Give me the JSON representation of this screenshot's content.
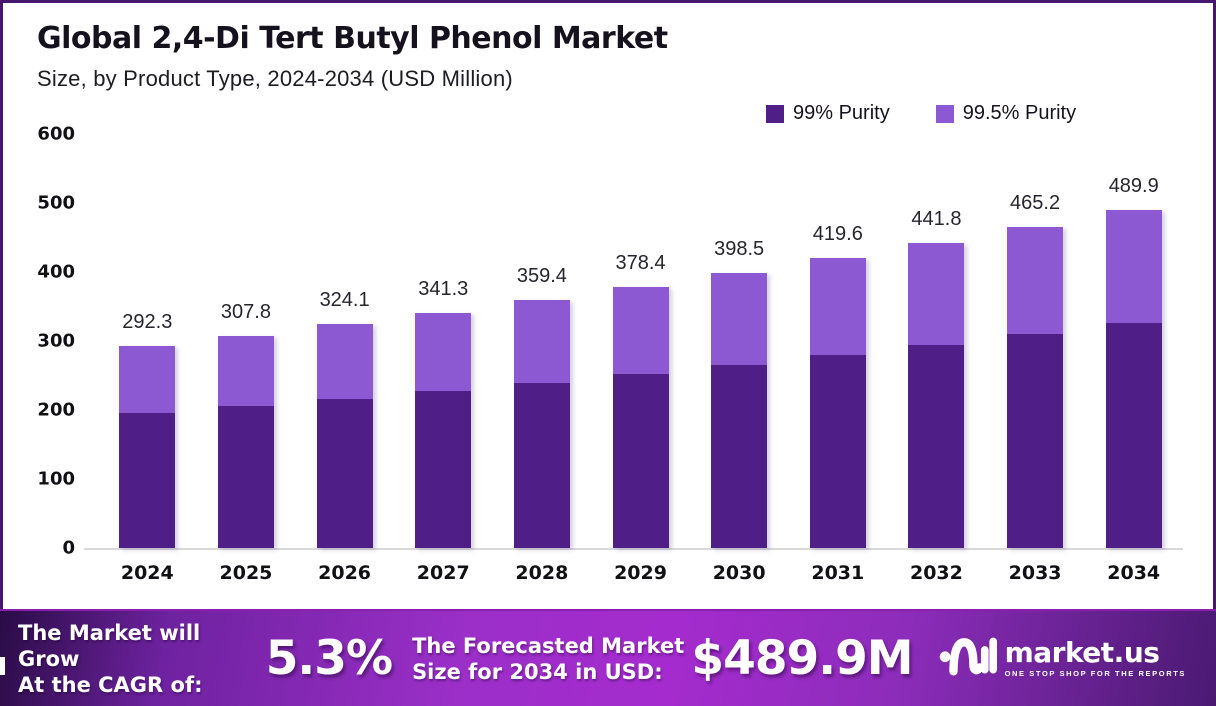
{
  "title": "Global 2,4-Di Tert Butyl Phenol Market",
  "subtitle": "Size, by Product Type, 2024-2034 (USD Million)",
  "colors": {
    "purity_99": "#4F1E87",
    "purity_99_5": "#8C59D3",
    "banner_left": "#2A0C46",
    "banner_mid": "#A52BCE",
    "banner_right": "#4A1A72",
    "frame_border": "#45176E"
  },
  "chart_data": {
    "type": "bar",
    "stacked": true,
    "title": "Global 2,4-Di Tert Butyl Phenol Market",
    "subtitle": "Size, by Product Type, 2024-2034 (USD Million)",
    "xlabel": "",
    "ylabel": "",
    "ylim": [
      0,
      600
    ],
    "yticks": [
      600,
      500,
      400,
      300,
      200,
      100,
      0
    ],
    "grid": false,
    "legend_position": "top-right",
    "categories": [
      "2024",
      "2025",
      "2026",
      "2027",
      "2028",
      "2029",
      "2030",
      "2031",
      "2032",
      "2033",
      "2034"
    ],
    "totals": [
      292.3,
      307.8,
      324.1,
      341.3,
      359.4,
      378.4,
      398.5,
      419.6,
      441.8,
      465.2,
      489.9
    ],
    "series": [
      {
        "name": "99% Purity",
        "color": "#4F1E87",
        "values": [
          195.0,
          205.3,
          216.2,
          227.6,
          239.7,
          252.4,
          265.8,
          279.9,
          294.7,
          310.3,
          326.8
        ]
      },
      {
        "name": "99.5% Purity",
        "color": "#8C59D3",
        "values": [
          97.3,
          102.5,
          107.9,
          113.7,
          119.7,
          126.0,
          132.7,
          139.7,
          147.1,
          154.9,
          163.1
        ]
      }
    ]
  },
  "footer": {
    "left_line1": "The Market will Grow",
    "left_line2": "At the CAGR of:",
    "cagr_value": "5.3%",
    "mid_line1": "The Forecasted Market",
    "mid_line2": "Size for 2034 in USD:",
    "forecast_value": "$489.9M",
    "brand_name": "market.us",
    "brand_tagline": "ONE STOP SHOP FOR THE REPORTS",
    "brand_logo_icon": "marketus-wave-icon"
  }
}
